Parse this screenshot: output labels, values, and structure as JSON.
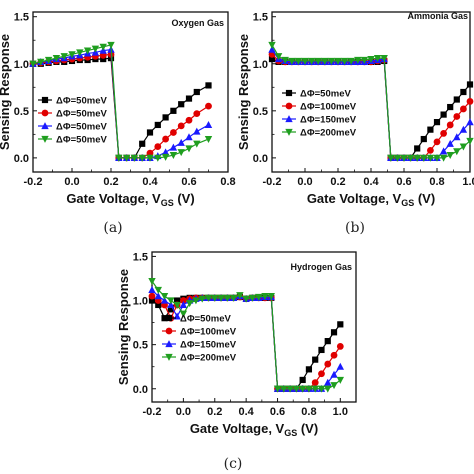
{
  "colors": {
    "black": "#000000",
    "red": "#e00000",
    "blue": "#1a1aff",
    "green": "#1f9e1f"
  },
  "chart_data": [
    {
      "type": "line",
      "caption": "(a)",
      "annotation": "Oxygen Gas",
      "xlabel": "Gate Voltage, V",
      "xlabel_sub": "GS",
      "xlabel_unit": " (V)",
      "ylabel": "Sensing Response",
      "xlim": [
        -0.2,
        0.8
      ],
      "ylim": [
        -0.15,
        1.55
      ],
      "xticks": [
        -0.2,
        0.0,
        0.2,
        0.4,
        0.6,
        0.8
      ],
      "xtick_labels": [
        "-0.2",
        "0.0",
        "0.2",
        "0.4",
        "0.6",
        "0.8"
      ],
      "yticks": [
        0.0,
        0.5,
        1.0,
        1.5
      ],
      "ytick_labels": [
        "0.0",
        "0.5",
        "1.0",
        "1.5"
      ],
      "legend": "lower-right",
      "series": [
        {
          "name": "ΔΦ=50meV",
          "color": "#000000",
          "marker": "square",
          "x": [
            -0.2,
            -0.16,
            -0.12,
            -0.08,
            -0.04,
            0.0,
            0.04,
            0.08,
            0.12,
            0.16,
            0.2,
            0.24,
            0.28,
            0.32,
            0.36,
            0.4,
            0.44,
            0.48,
            0.52,
            0.56,
            0.6,
            0.64,
            0.7
          ],
          "y": [
            1.0,
            1.0,
            1.01,
            1.02,
            1.02,
            1.03,
            1.04,
            1.04,
            1.05,
            1.05,
            1.06,
            0.0,
            0.0,
            0.0,
            0.15,
            0.27,
            0.35,
            0.43,
            0.5,
            0.57,
            0.63,
            0.7,
            0.77
          ]
        },
        {
          "name": "ΔΦ=50meV",
          "color": "#e00000",
          "marker": "circle",
          "x": [
            -0.2,
            -0.16,
            -0.12,
            -0.08,
            -0.04,
            0.0,
            0.04,
            0.08,
            0.12,
            0.16,
            0.2,
            0.24,
            0.28,
            0.32,
            0.36,
            0.4,
            0.44,
            0.48,
            0.52,
            0.56,
            0.6,
            0.64,
            0.7
          ],
          "y": [
            1.0,
            1.01,
            1.02,
            1.03,
            1.04,
            1.05,
            1.06,
            1.07,
            1.08,
            1.09,
            1.1,
            0.0,
            0.0,
            0.0,
            0.0,
            0.05,
            0.12,
            0.2,
            0.27,
            0.34,
            0.4,
            0.47,
            0.55
          ]
        },
        {
          "name": "ΔΦ=50meV",
          "color": "#1a1aff",
          "marker": "triangle-up",
          "x": [
            -0.2,
            -0.16,
            -0.12,
            -0.08,
            -0.04,
            0.0,
            0.04,
            0.08,
            0.12,
            0.16,
            0.2,
            0.24,
            0.28,
            0.32,
            0.36,
            0.4,
            0.44,
            0.48,
            0.52,
            0.56,
            0.6,
            0.64,
            0.7
          ],
          "y": [
            1.0,
            1.02,
            1.03,
            1.05,
            1.06,
            1.08,
            1.09,
            1.11,
            1.12,
            1.14,
            1.15,
            0.0,
            0.0,
            0.0,
            0.0,
            0.0,
            0.02,
            0.06,
            0.11,
            0.16,
            0.22,
            0.28,
            0.35
          ]
        },
        {
          "name": "ΔΦ=50meV",
          "color": "#1f9e1f",
          "marker": "triangle-down",
          "x": [
            -0.2,
            -0.16,
            -0.12,
            -0.08,
            -0.04,
            0.0,
            0.04,
            0.08,
            0.12,
            0.16,
            0.2,
            0.24,
            0.28,
            0.32,
            0.36,
            0.4,
            0.44,
            0.48,
            0.52,
            0.56,
            0.6,
            0.64,
            0.7
          ],
          "y": [
            1.0,
            1.02,
            1.04,
            1.06,
            1.08,
            1.1,
            1.12,
            1.14,
            1.16,
            1.18,
            1.2,
            0.0,
            0.0,
            0.0,
            0.0,
            0.0,
            0.0,
            0.01,
            0.03,
            0.06,
            0.1,
            0.15,
            0.2
          ]
        }
      ]
    },
    {
      "type": "line",
      "caption": "(b)",
      "annotation": "Ammonia Gas",
      "xlabel": "Gate Voltage, V",
      "xlabel_sub": "GS",
      "xlabel_unit": " (V)",
      "ylabel": "Sensing Response",
      "xlim": [
        -0.2,
        1.0
      ],
      "ylim": [
        -0.15,
        1.55
      ],
      "xticks": [
        -0.2,
        0.0,
        0.2,
        0.4,
        0.6,
        0.8,
        1.0
      ],
      "xtick_labels": [
        "-0.2",
        "0.0",
        "0.2",
        "0.4",
        "0.6",
        "0.8",
        "1.0"
      ],
      "yticks": [
        0.0,
        0.5,
        1.0,
        1.5
      ],
      "ytick_labels": [
        "0.0",
        "0.5",
        "1.0",
        "1.5"
      ],
      "legend": "lower-left",
      "series": [
        {
          "name": "ΔΦ=50meV",
          "color": "#000000",
          "marker": "square",
          "x": [
            -0.2,
            -0.16,
            -0.12,
            -0.08,
            -0.04,
            0.0,
            0.04,
            0.08,
            0.12,
            0.16,
            0.2,
            0.24,
            0.28,
            0.32,
            0.36,
            0.4,
            0.44,
            0.48,
            0.52,
            0.56,
            0.6,
            0.64,
            0.68,
            0.72,
            0.76,
            0.8,
            0.84,
            0.88,
            0.92,
            0.96,
            1.0
          ],
          "y": [
            1.05,
            1.02,
            1.02,
            1.02,
            1.02,
            1.02,
            1.02,
            1.02,
            1.02,
            1.02,
            1.02,
            1.02,
            1.02,
            1.02,
            1.02,
            1.02,
            1.02,
            1.03,
            0.0,
            0.0,
            0.0,
            0.0,
            0.1,
            0.2,
            0.3,
            0.38,
            0.46,
            0.54,
            0.62,
            0.7,
            0.78
          ]
        },
        {
          "name": "ΔΦ=100meV",
          "color": "#e00000",
          "marker": "circle",
          "x": [
            -0.2,
            -0.16,
            -0.12,
            -0.08,
            -0.04,
            0.0,
            0.04,
            0.08,
            0.12,
            0.16,
            0.2,
            0.24,
            0.28,
            0.32,
            0.36,
            0.4,
            0.44,
            0.48,
            0.52,
            0.56,
            0.6,
            0.64,
            0.68,
            0.72,
            0.76,
            0.8,
            0.84,
            0.88,
            0.92,
            0.96,
            1.0
          ],
          "y": [
            1.1,
            1.03,
            1.02,
            1.02,
            1.02,
            1.02,
            1.02,
            1.02,
            1.02,
            1.02,
            1.02,
            1.02,
            1.02,
            1.02,
            1.02,
            1.02,
            1.03,
            1.04,
            0.0,
            0.0,
            0.0,
            0.0,
            0.0,
            0.0,
            0.08,
            0.17,
            0.26,
            0.35,
            0.44,
            0.52,
            0.6
          ]
        },
        {
          "name": "ΔΦ=150meV",
          "color": "#1a1aff",
          "marker": "triangle-up",
          "x": [
            -0.2,
            -0.16,
            -0.12,
            -0.08,
            -0.04,
            0.0,
            0.04,
            0.08,
            0.12,
            0.16,
            0.2,
            0.24,
            0.28,
            0.32,
            0.36,
            0.4,
            0.44,
            0.48,
            0.52,
            0.56,
            0.6,
            0.64,
            0.68,
            0.72,
            0.76,
            0.8,
            0.84,
            0.88,
            0.92,
            0.96,
            1.0
          ],
          "y": [
            1.15,
            1.05,
            1.03,
            1.02,
            1.02,
            1.02,
            1.02,
            1.02,
            1.02,
            1.02,
            1.02,
            1.02,
            1.02,
            1.02,
            1.02,
            1.03,
            1.04,
            1.05,
            0.0,
            0.0,
            0.0,
            0.0,
            0.0,
            0.0,
            0.0,
            0.0,
            0.07,
            0.15,
            0.22,
            0.3,
            0.38
          ]
        },
        {
          "name": "ΔΦ=200meV",
          "color": "#1f9e1f",
          "marker": "triangle-down",
          "x": [
            -0.2,
            -0.16,
            -0.12,
            -0.08,
            -0.04,
            0.0,
            0.04,
            0.08,
            0.12,
            0.16,
            0.2,
            0.24,
            0.28,
            0.32,
            0.36,
            0.4,
            0.44,
            0.48,
            0.52,
            0.56,
            0.6,
            0.64,
            0.68,
            0.72,
            0.76,
            0.8,
            0.84,
            0.88,
            0.92,
            0.96,
            1.0
          ],
          "y": [
            1.2,
            1.08,
            1.04,
            1.03,
            1.03,
            1.03,
            1.03,
            1.03,
            1.03,
            1.03,
            1.03,
            1.03,
            1.03,
            1.04,
            1.04,
            1.05,
            1.06,
            1.06,
            0.0,
            0.0,
            0.0,
            0.0,
            0.0,
            0.0,
            0.0,
            0.0,
            0.0,
            0.03,
            0.07,
            0.12,
            0.18
          ]
        }
      ]
    },
    {
      "type": "line",
      "caption": "(c)",
      "annotation": "Hydrogen Gas",
      "xlabel": "Gate Voltage, V",
      "xlabel_sub": "GS",
      "xlabel_unit": " (V)",
      "ylabel": "Sensing Response",
      "xlim": [
        -0.2,
        1.1
      ],
      "ylim": [
        -0.15,
        1.55
      ],
      "xticks": [
        -0.2,
        0.0,
        0.2,
        0.4,
        0.6,
        0.8,
        1.0
      ],
      "xtick_labels": [
        "-0.2",
        "0.0",
        "0.2",
        "0.4",
        "0.6",
        "0.8",
        "1.0"
      ],
      "yticks": [
        0.0,
        0.5,
        1.0,
        1.5
      ],
      "ytick_labels": [
        "0.0",
        "0.5",
        "1.0",
        "1.5"
      ],
      "legend": "lower-left",
      "series": [
        {
          "name": "ΔΦ=50meV",
          "color": "#000000",
          "marker": "square",
          "x": [
            -0.2,
            -0.16,
            -0.12,
            -0.08,
            -0.04,
            0.0,
            0.04,
            0.08,
            0.12,
            0.16,
            0.2,
            0.24,
            0.28,
            0.32,
            0.36,
            0.4,
            0.44,
            0.48,
            0.52,
            0.56,
            0.6,
            0.64,
            0.68,
            0.72,
            0.76,
            0.8,
            0.84,
            0.88,
            0.92,
            0.96,
            1.0
          ],
          "y": [
            1.0,
            0.95,
            0.8,
            0.9,
            1.0,
            1.02,
            1.03,
            1.03,
            1.03,
            1.03,
            1.03,
            1.03,
            1.03,
            1.03,
            1.04,
            1.02,
            1.03,
            1.03,
            1.03,
            1.03,
            0.0,
            0.0,
            0.0,
            0.0,
            0.1,
            0.22,
            0.33,
            0.44,
            0.54,
            0.64,
            0.73
          ]
        },
        {
          "name": "ΔΦ=100meV",
          "color": "#e00000",
          "marker": "circle",
          "x": [
            -0.2,
            -0.16,
            -0.12,
            -0.08,
            -0.04,
            0.0,
            0.04,
            0.08,
            0.12,
            0.16,
            0.2,
            0.24,
            0.28,
            0.32,
            0.36,
            0.4,
            0.44,
            0.48,
            0.52,
            0.56,
            0.6,
            0.64,
            0.68,
            0.72,
            0.76,
            0.8,
            0.84,
            0.88,
            0.92,
            0.96,
            1.0
          ],
          "y": [
            1.05,
            1.0,
            0.95,
            0.8,
            0.95,
            1.0,
            1.02,
            1.03,
            1.03,
            1.03,
            1.03,
            1.03,
            1.03,
            1.03,
            1.04,
            1.02,
            1.03,
            1.03,
            1.03,
            1.03,
            0.0,
            0.0,
            0.0,
            0.0,
            0.0,
            0.0,
            0.07,
            0.17,
            0.28,
            0.38,
            0.48
          ]
        },
        {
          "name": "ΔΦ=150meV",
          "color": "#1a1aff",
          "marker": "triangle-up",
          "x": [
            -0.2,
            -0.16,
            -0.12,
            -0.08,
            -0.04,
            0.0,
            0.04,
            0.08,
            0.12,
            0.16,
            0.2,
            0.24,
            0.28,
            0.32,
            0.36,
            0.4,
            0.44,
            0.48,
            0.52,
            0.56,
            0.6,
            0.64,
            0.68,
            0.72,
            0.76,
            0.8,
            0.84,
            0.88,
            0.92,
            0.96,
            1.0
          ],
          "y": [
            1.12,
            1.05,
            1.0,
            0.95,
            0.82,
            0.95,
            1.0,
            1.02,
            1.03,
            1.03,
            1.03,
            1.03,
            1.03,
            1.03,
            1.05,
            1.02,
            1.03,
            1.03,
            1.04,
            1.04,
            0.0,
            0.0,
            0.0,
            0.0,
            0.0,
            0.0,
            0.0,
            0.0,
            0.07,
            0.16,
            0.25
          ]
        },
        {
          "name": "ΔΦ=200meV",
          "color": "#1f9e1f",
          "marker": "triangle-down",
          "x": [
            -0.2,
            -0.16,
            -0.12,
            -0.08,
            -0.04,
            0.0,
            0.04,
            0.08,
            0.12,
            0.16,
            0.2,
            0.24,
            0.28,
            0.32,
            0.36,
            0.4,
            0.44,
            0.48,
            0.52,
            0.56,
            0.6,
            0.64,
            0.68,
            0.72,
            0.76,
            0.8,
            0.84,
            0.88,
            0.92,
            0.96,
            1.0
          ],
          "y": [
            1.22,
            1.12,
            1.05,
            1.0,
            0.95,
            0.85,
            0.97,
            1.0,
            1.02,
            1.03,
            1.03,
            1.03,
            1.03,
            1.03,
            1.06,
            1.02,
            1.03,
            1.04,
            1.05,
            1.05,
            0.0,
            0.0,
            0.0,
            0.0,
            0.0,
            0.0,
            0.0,
            0.0,
            0.0,
            0.04,
            0.1
          ]
        }
      ]
    }
  ]
}
